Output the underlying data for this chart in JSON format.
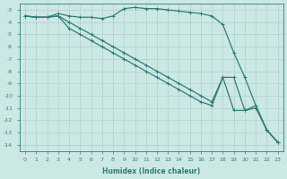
{
  "xlabel": "Humidex (Indice chaleur)",
  "ylabel": "",
  "background_color": "#cce8e5",
  "line_color": "#2e7d78",
  "grid_color": "#aed0cc",
  "x_ticks": [
    0,
    1,
    2,
    3,
    4,
    5,
    6,
    7,
    8,
    9,
    10,
    11,
    12,
    13,
    14,
    15,
    16,
    17,
    18,
    19,
    20,
    21,
    22,
    23
  ],
  "y_ticks": [
    -3,
    -4,
    -5,
    -6,
    -7,
    -8,
    -9,
    -10,
    -11,
    -12,
    -13,
    -14
  ],
  "xlim": [
    -0.5,
    23.5
  ],
  "ylim": [
    -14.5,
    -2.5
  ],
  "series": {
    "line1_x": [
      0,
      1,
      2,
      3,
      4,
      5,
      6,
      7,
      8,
      9,
      10,
      11,
      12,
      13,
      14,
      15,
      16,
      17,
      18,
      19,
      20,
      21,
      22,
      23
    ],
    "line1_y": [
      -3.5,
      -3.6,
      -3.6,
      -3.3,
      -3.5,
      -3.6,
      -3.6,
      -3.7,
      -3.5,
      -2.9,
      -2.8,
      -2.9,
      -2.9,
      -3.0,
      -3.1,
      -3.2,
      -3.3,
      -3.5,
      -4.2,
      -6.5,
      -8.5,
      -10.8,
      -12.8,
      -13.8
    ],
    "line2_x": [
      0,
      1,
      2,
      3,
      4,
      5,
      6,
      7,
      8,
      9,
      10,
      11,
      12,
      13,
      14,
      15,
      16,
      17,
      18,
      19,
      20,
      21,
      22,
      23
    ],
    "line2_y": [
      -3.5,
      -3.6,
      -3.6,
      -3.5,
      -4.5,
      -5.0,
      -5.5,
      -6.0,
      -6.5,
      -7.0,
      -7.5,
      -8.0,
      -8.5,
      -9.0,
      -9.5,
      -10.0,
      -10.5,
      -10.8,
      -8.5,
      -8.5,
      -11.2,
      -11.0,
      -12.8,
      -13.8
    ],
    "line3_x": [
      0,
      1,
      2,
      3,
      4,
      5,
      6,
      7,
      8,
      9,
      10,
      11,
      12,
      13,
      14,
      15,
      16,
      17,
      18,
      19,
      20,
      21,
      22,
      23
    ],
    "line3_y": [
      -3.5,
      -3.6,
      -3.6,
      -3.5,
      -4.0,
      -4.5,
      -5.0,
      -5.5,
      -6.0,
      -6.5,
      -7.0,
      -7.5,
      -8.0,
      -8.5,
      -9.0,
      -9.5,
      -10.0,
      -10.5,
      -8.5,
      -11.2,
      -11.2,
      -10.8,
      -12.8,
      -13.8
    ]
  }
}
